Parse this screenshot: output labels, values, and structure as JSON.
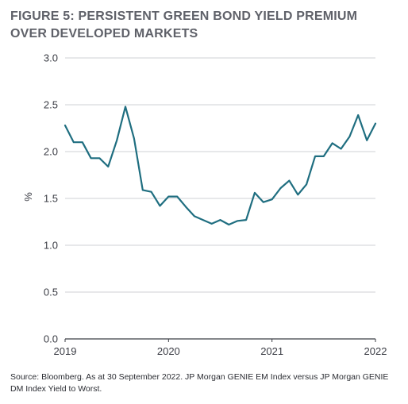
{
  "title_lines": [
    "FIGURE 5: PERSISTENT GREEN BOND YIELD PREMIUM",
    "OVER DEVELOPED MARKETS"
  ],
  "source": "Source: Bloomberg. As at 30 September 2022. JP Morgan GENIE EM Index versus JP Morgan GENIE DM Index Yield to Worst.",
  "chart_data": {
    "type": "line",
    "title": "FIGURE 5: PERSISTENT GREEN BOND YIELD PREMIUM OVER DEVELOPED MARKETS",
    "xlabel": "",
    "ylabel": "%",
    "xlim": [
      2019,
      2022
    ],
    "ylim": [
      0,
      3
    ],
    "x_ticks": [
      "2019",
      "2020",
      "2021",
      "2022"
    ],
    "y_ticks": [
      "0.0",
      "0.5",
      "1.0",
      "1.5",
      "2.0",
      "2.5",
      "3.0"
    ],
    "grid": true,
    "color": "#1f6e80",
    "series": [
      {
        "name": "",
        "x": [
          2019.0,
          2019.083,
          2019.167,
          2019.25,
          2019.333,
          2019.417,
          2019.5,
          2019.583,
          2019.667,
          2019.75,
          2019.833,
          2019.917,
          2020.0,
          2020.083,
          2020.167,
          2020.25,
          2020.333,
          2020.417,
          2020.5,
          2020.583,
          2020.667,
          2020.75,
          2020.833,
          2020.917,
          2021.0,
          2021.083,
          2021.167,
          2021.25,
          2021.333,
          2021.417,
          2021.5,
          2021.583,
          2021.667,
          2021.75,
          2021.833,
          2021.917,
          2022.0
        ],
        "values": [
          2.28,
          2.1,
          2.1,
          1.93,
          1.93,
          1.84,
          2.12,
          2.48,
          2.14,
          1.59,
          1.57,
          1.42,
          1.52,
          1.52,
          1.41,
          1.31,
          1.27,
          1.23,
          1.27,
          1.22,
          1.26,
          1.27,
          1.56,
          1.46,
          1.49,
          1.61,
          1.69,
          1.54,
          1.65,
          1.95,
          1.95,
          2.09,
          2.03,
          2.16,
          2.39,
          2.12,
          2.3
        ]
      }
    ]
  }
}
